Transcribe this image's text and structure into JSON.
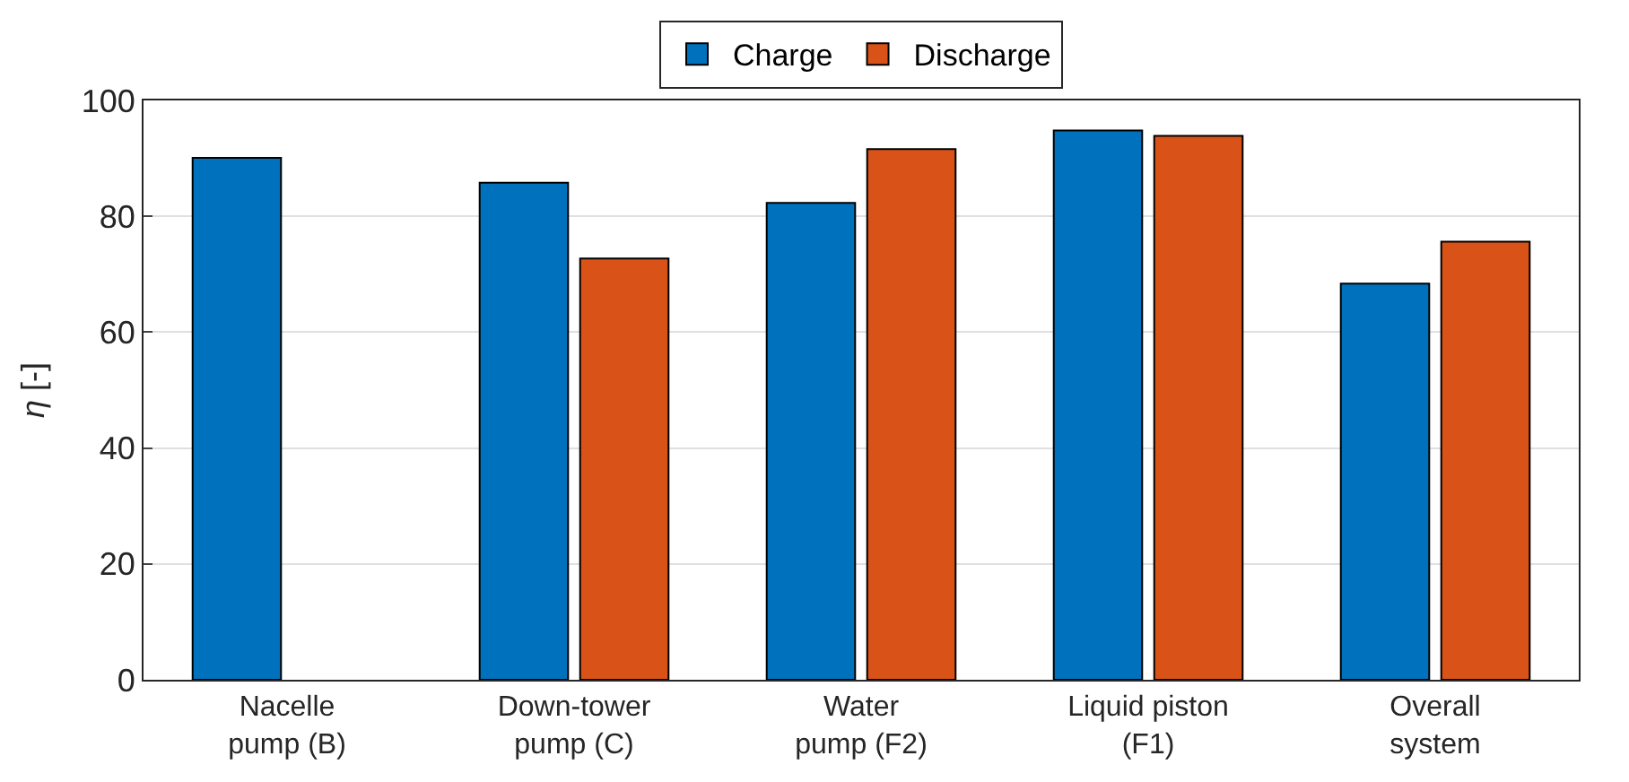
{
  "chart_data": {
    "type": "bar",
    "ylabel": "η [-]",
    "categories": [
      "Nacelle\npump (B)",
      "Down-tower\npump (C)",
      "Water\npump (F2)",
      "Liquid piston\n(F1)",
      "Overall\nsystem"
    ],
    "series": [
      {
        "name": "Charge",
        "color": "#0072bd",
        "values": [
          90.1,
          85.8,
          82.3,
          94.8,
          68.4
        ]
      },
      {
        "name": "Discharge",
        "color": "#d95319",
        "values": [
          null,
          72.7,
          91.6,
          93.9,
          75.6
        ]
      }
    ],
    "ylim": [
      0,
      100
    ],
    "yticks": [
      0,
      20,
      40,
      60,
      80,
      100
    ],
    "grid": true,
    "legend": "top"
  }
}
